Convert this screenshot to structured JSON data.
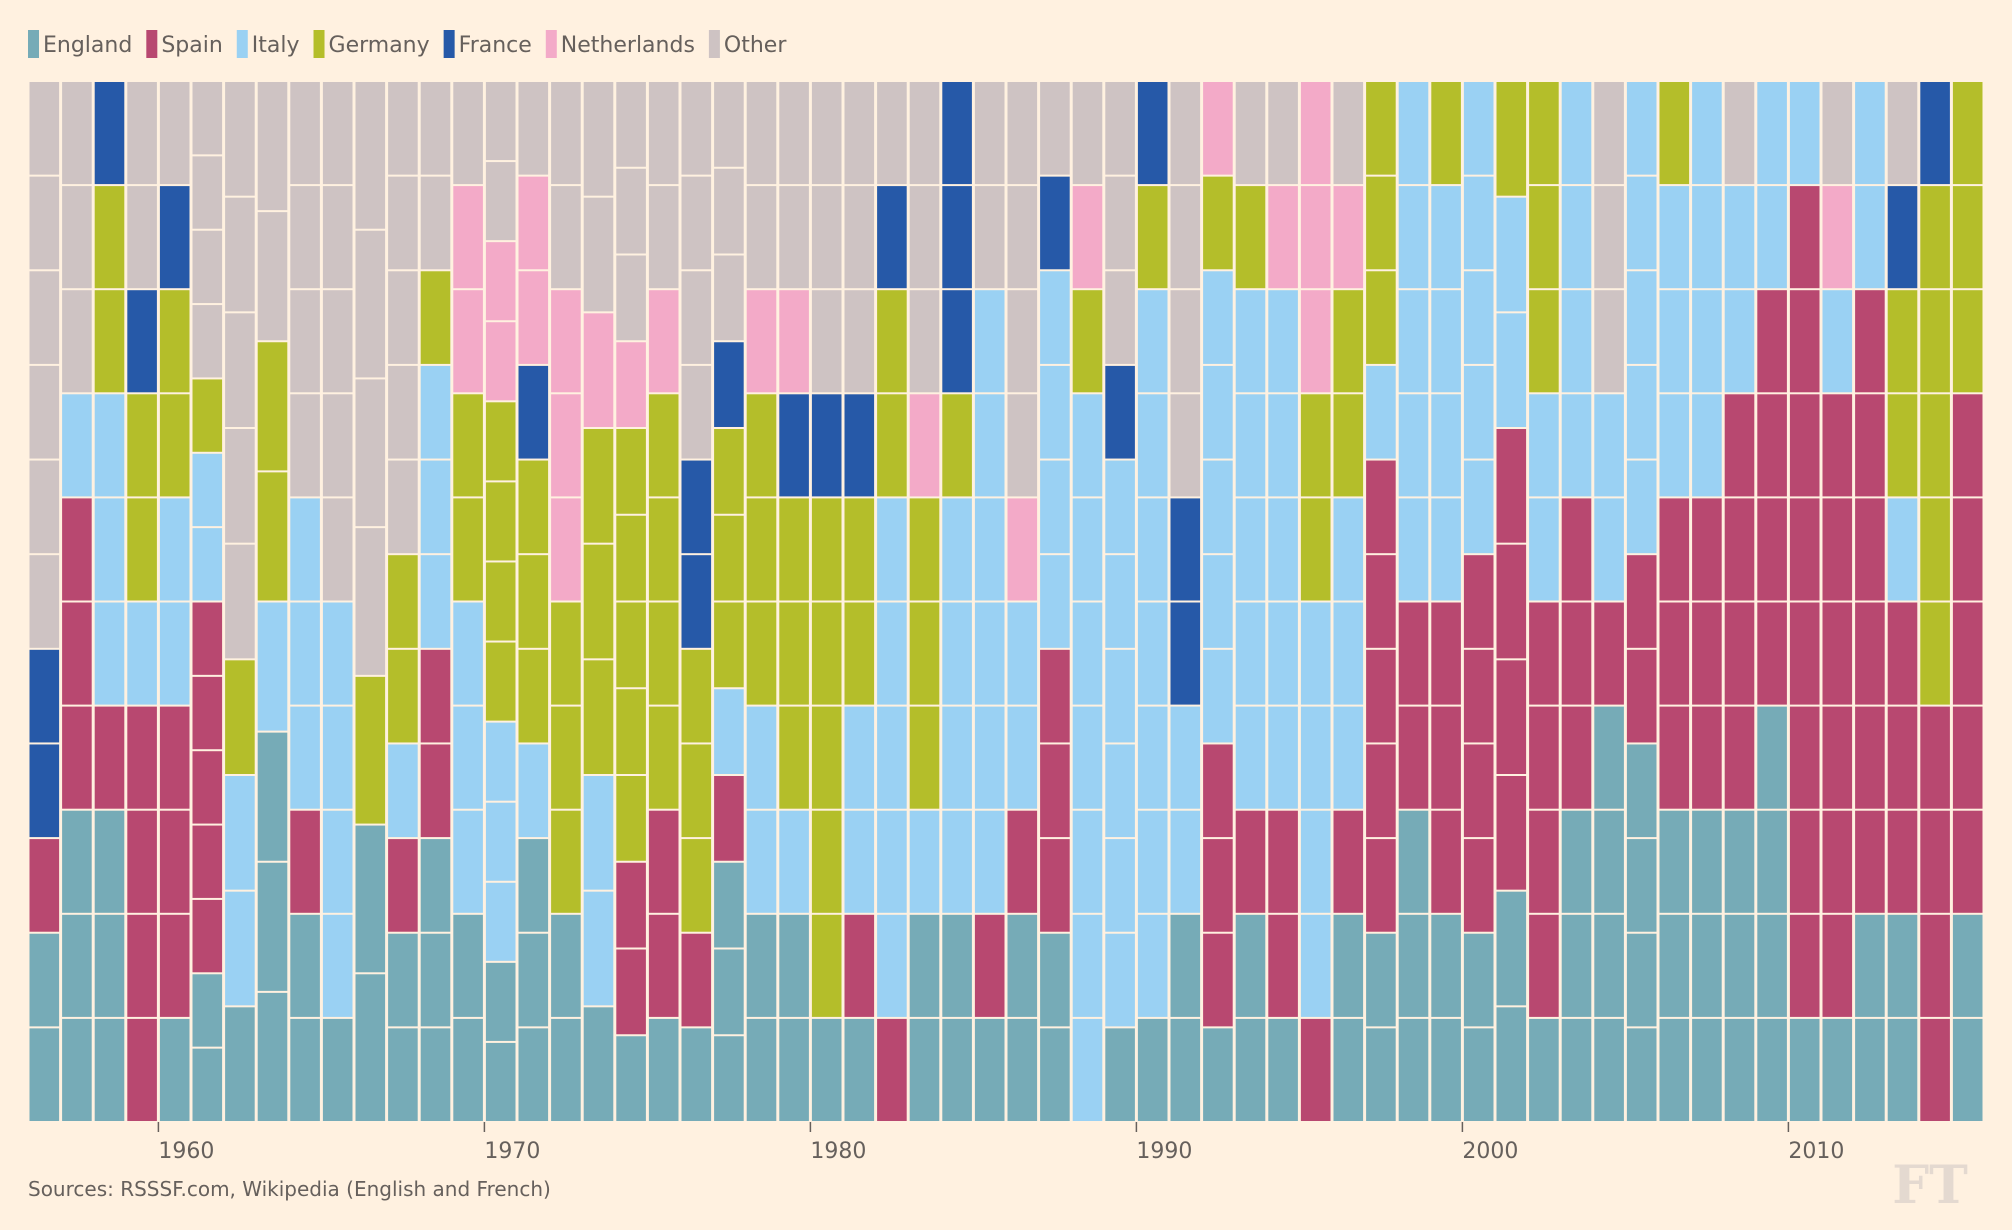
{
  "chart_data": {
    "type": "bar",
    "stacked": true,
    "normalized": true,
    "title": "",
    "xlabel": "",
    "ylabel": "",
    "legend_position": "top-left",
    "grid": false,
    "series": [
      {
        "name": "England",
        "color": "#76abb7"
      },
      {
        "name": "Spain",
        "color": "#b84870"
      },
      {
        "name": "Italy",
        "color": "#9ad1f3"
      },
      {
        "name": "Germany",
        "color": "#b4be2a"
      },
      {
        "name": "France",
        "color": "#2659a8"
      },
      {
        "name": "Netherlands",
        "color": "#f3aac8"
      },
      {
        "name": "Other",
        "color": "#cec3c3"
      }
    ],
    "x_ticks": [
      "1960",
      "1970",
      "1980",
      "1990",
      "2000",
      "2010"
    ],
    "years": [
      1956,
      1957,
      1958,
      1959,
      1960,
      1961,
      1962,
      1963,
      1964,
      1965,
      1966,
      1967,
      1968,
      1969,
      1970,
      1971,
      1972,
      1973,
      1974,
      1975,
      1976,
      1977,
      1978,
      1979,
      1980,
      1981,
      1982,
      1983,
      1984,
      1985,
      1986,
      1987,
      1988,
      1989,
      1990,
      1991,
      1992,
      1993,
      1994,
      1995,
      1996,
      1997,
      1998,
      1999,
      2000,
      2001,
      2002,
      2003,
      2004,
      2005,
      2006,
      2007,
      2008,
      2009,
      2010,
      2011,
      2012,
      2013,
      2014,
      2015
    ],
    "counts_order": [
      "England",
      "Spain",
      "Italy",
      "Germany",
      "France",
      "Netherlands",
      "Other"
    ],
    "counts": [
      [
        2,
        1,
        0,
        0,
        2,
        0,
        6
      ],
      [
        3,
        3,
        1,
        0,
        0,
        0,
        3
      ],
      [
        3,
        1,
        3,
        2,
        1,
        0,
        0
      ],
      [
        0,
        4,
        1,
        2,
        1,
        0,
        2
      ],
      [
        1,
        3,
        2,
        2,
        1,
        0,
        1
      ],
      [
        2,
        5,
        2,
        1,
        0,
        0,
        4
      ],
      [
        1,
        0,
        2,
        1,
        0,
        0,
        5
      ],
      [
        3,
        0,
        1,
        2,
        0,
        0,
        2
      ],
      [
        2,
        1,
        3,
        0,
        0,
        0,
        4
      ],
      [
        1,
        0,
        4,
        0,
        0,
        0,
        5
      ],
      [
        2,
        0,
        0,
        1,
        0,
        0,
        4
      ],
      [
        2,
        1,
        1,
        2,
        0,
        0,
        5
      ],
      [
        3,
        2,
        3,
        1,
        0,
        0,
        2
      ],
      [
        2,
        0,
        3,
        2,
        0,
        2,
        1
      ],
      [
        2,
        0,
        3,
        4,
        0,
        2,
        2
      ],
      [
        3,
        0,
        1,
        3,
        1,
        2,
        1
      ],
      [
        2,
        0,
        0,
        3,
        0,
        3,
        2
      ],
      [
        1,
        0,
        2,
        3,
        0,
        1,
        2
      ],
      [
        1,
        2,
        0,
        5,
        0,
        1,
        3
      ],
      [
        1,
        2,
        0,
        4,
        0,
        1,
        2
      ],
      [
        1,
        1,
        0,
        3,
        2,
        0,
        4
      ],
      [
        3,
        1,
        1,
        3,
        1,
        0,
        3
      ],
      [
        2,
        0,
        2,
        3,
        0,
        1,
        2
      ],
      [
        2,
        0,
        1,
        3,
        1,
        1,
        2
      ],
      [
        1,
        0,
        0,
        5,
        1,
        0,
        3
      ],
      [
        1,
        1,
        2,
        2,
        1,
        0,
        3
      ],
      [
        0,
        1,
        5,
        2,
        1,
        0,
        1
      ],
      [
        2,
        0,
        1,
        3,
        0,
        1,
        3
      ],
      [
        2,
        0,
        4,
        1,
        3,
        0,
        0
      ],
      [
        1,
        1,
        6,
        0,
        0,
        0,
        2
      ],
      [
        2,
        1,
        2,
        0,
        0,
        1,
        4
      ],
      [
        2,
        3,
        4,
        0,
        1,
        0,
        1
      ],
      [
        0,
        0,
        7,
        1,
        0,
        1,
        1
      ],
      [
        1,
        0,
        6,
        0,
        1,
        0,
        3
      ],
      [
        1,
        0,
        7,
        1,
        1,
        0,
        0
      ],
      [
        2,
        0,
        2,
        0,
        2,
        0,
        4
      ],
      [
        1,
        3,
        5,
        1,
        0,
        1,
        0
      ],
      [
        2,
        1,
        5,
        1,
        0,
        0,
        1
      ],
      [
        1,
        2,
        5,
        0,
        0,
        1,
        1
      ],
      [
        0,
        1,
        4,
        2,
        0,
        3,
        0
      ],
      [
        2,
        1,
        3,
        2,
        0,
        1,
        1
      ],
      [
        2,
        5,
        1,
        3,
        0,
        0,
        0
      ],
      [
        3,
        2,
        5,
        0,
        0,
        0,
        0
      ],
      [
        2,
        3,
        4,
        1,
        0,
        0,
        0
      ],
      [
        2,
        4,
        5,
        0,
        0,
        0,
        0
      ],
      [
        2,
        4,
        2,
        1,
        0,
        0,
        0
      ],
      [
        1,
        4,
        2,
        3,
        0,
        0,
        0
      ],
      [
        3,
        3,
        4,
        0,
        0,
        0,
        0
      ],
      [
        4,
        1,
        2,
        0,
        0,
        0,
        3
      ],
      [
        4,
        2,
        5,
        0,
        0,
        0,
        0
      ],
      [
        3,
        3,
        3,
        1,
        0,
        0,
        0
      ],
      [
        3,
        3,
        4,
        0,
        0,
        0,
        0
      ],
      [
        3,
        4,
        2,
        0,
        0,
        0,
        1
      ],
      [
        4,
        4,
        2,
        0,
        0,
        0,
        0
      ],
      [
        1,
        8,
        1,
        0,
        0,
        0,
        0
      ],
      [
        1,
        6,
        1,
        0,
        0,
        1,
        1
      ],
      [
        2,
        6,
        2,
        0,
        0,
        0,
        0
      ],
      [
        2,
        3,
        1,
        2,
        1,
        0,
        1
      ],
      [
        0,
        4,
        0,
        5,
        1,
        0,
        0
      ],
      [
        2,
        5,
        0,
        3,
        0,
        0,
        0
      ]
    ]
  },
  "footer": {
    "source": "Sources: RSSSF.com, Wikipedia (English and French)",
    "logo": "FT"
  },
  "colors": {
    "background": "#fff1e0",
    "text": "#66605c"
  }
}
